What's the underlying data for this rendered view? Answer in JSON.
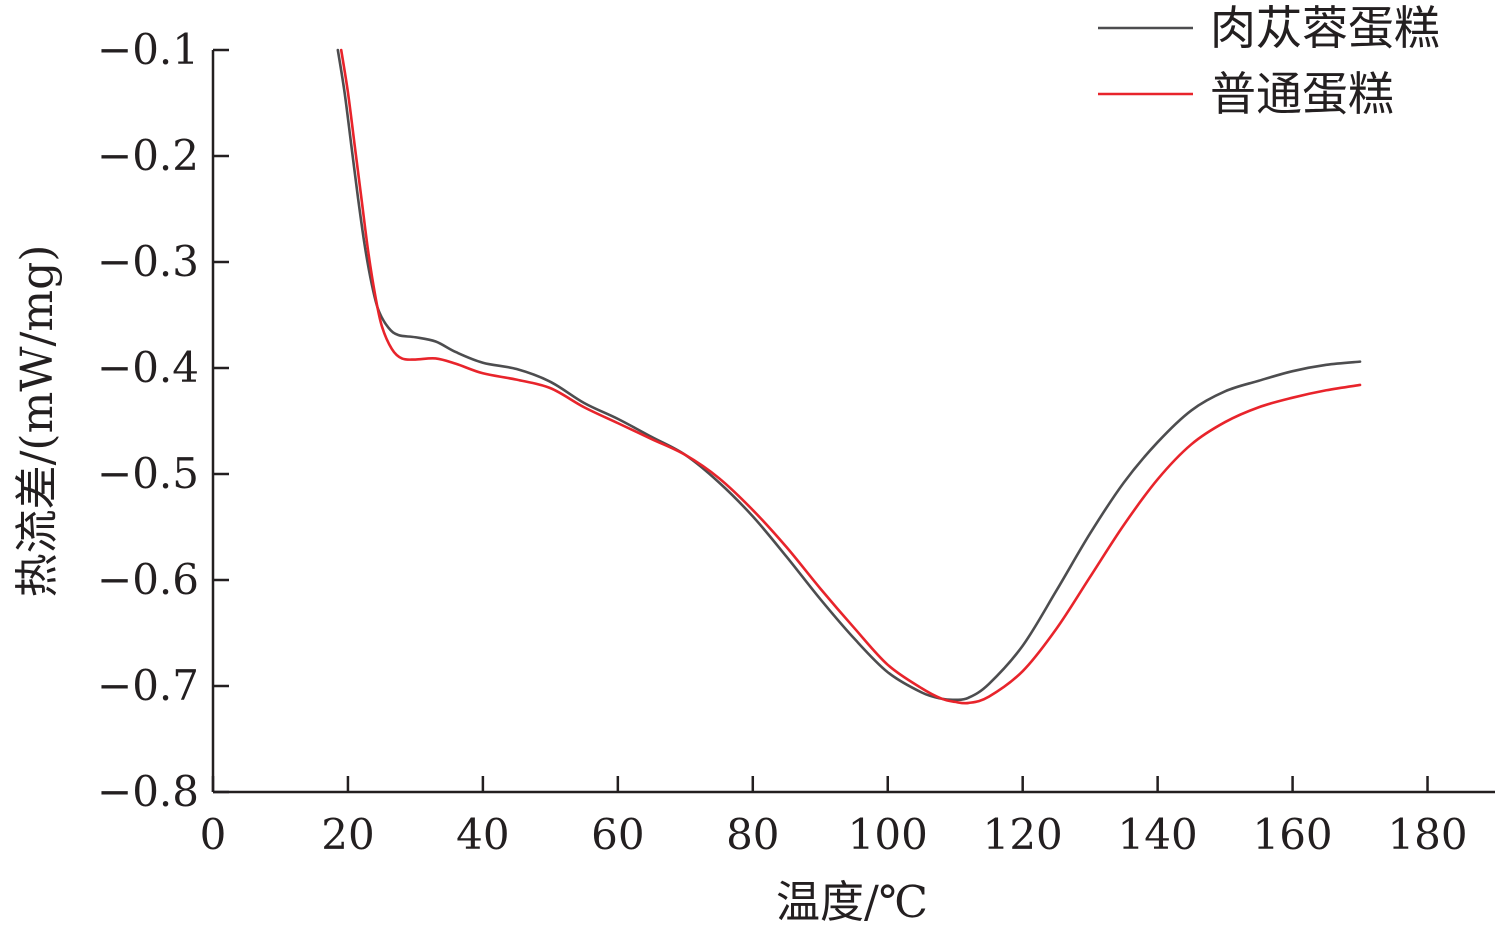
{
  "chart_data": {
    "type": "line",
    "title": "",
    "xlabel": "温度/℃",
    "ylabel": "热流差/(mW/mg)",
    "xlim": [
      0,
      190
    ],
    "ylim": [
      -0.8,
      -0.1
    ],
    "x_ticks": [
      0,
      20,
      40,
      60,
      80,
      100,
      120,
      140,
      160,
      180
    ],
    "x_tick_labels": [
      "0",
      "20",
      "40",
      "60",
      "80",
      "100",
      "120",
      "140",
      "160",
      "180"
    ],
    "y_ticks": [
      -0.1,
      -0.2,
      -0.3,
      -0.4,
      -0.5,
      -0.6,
      -0.7,
      -0.8
    ],
    "y_tick_labels": [
      "−0.1",
      "−0.2",
      "−0.3",
      "−0.4",
      "−0.5",
      "−0.6",
      "−0.7",
      "−0.8"
    ],
    "grid": false,
    "legend_position": "top-right",
    "series": [
      {
        "name": "肉苁蓉蛋糕",
        "color": "#4d4d4f",
        "points": [
          [
            18.5,
            -0.1
          ],
          [
            19.5,
            -0.14
          ],
          [
            20.5,
            -0.19
          ],
          [
            21.5,
            -0.24
          ],
          [
            22.5,
            -0.285
          ],
          [
            23.5,
            -0.32
          ],
          [
            24.5,
            -0.345
          ],
          [
            26,
            -0.362
          ],
          [
            27.5,
            -0.369
          ],
          [
            30,
            -0.371
          ],
          [
            33,
            -0.375
          ],
          [
            36,
            -0.385
          ],
          [
            40,
            -0.395
          ],
          [
            45,
            -0.401
          ],
          [
            50,
            -0.413
          ],
          [
            55,
            -0.433
          ],
          [
            60,
            -0.448
          ],
          [
            65,
            -0.465
          ],
          [
            70,
            -0.482
          ],
          [
            75,
            -0.508
          ],
          [
            80,
            -0.54
          ],
          [
            85,
            -0.578
          ],
          [
            90,
            -0.618
          ],
          [
            95,
            -0.655
          ],
          [
            100,
            -0.687
          ],
          [
            105,
            -0.706
          ],
          [
            108,
            -0.712
          ],
          [
            110,
            -0.713
          ],
          [
            112,
            -0.711
          ],
          [
            115,
            -0.698
          ],
          [
            120,
            -0.662
          ],
          [
            125,
            -0.61
          ],
          [
            130,
            -0.556
          ],
          [
            135,
            -0.508
          ],
          [
            140,
            -0.47
          ],
          [
            145,
            -0.44
          ],
          [
            150,
            -0.422
          ],
          [
            155,
            -0.412
          ],
          [
            160,
            -0.403
          ],
          [
            165,
            -0.397
          ],
          [
            170,
            -0.394
          ]
        ]
      },
      {
        "name": "普通蛋糕",
        "color": "#e8242b",
        "points": [
          [
            19,
            -0.1
          ],
          [
            20,
            -0.14
          ],
          [
            21,
            -0.19
          ],
          [
            22,
            -0.24
          ],
          [
            23,
            -0.29
          ],
          [
            24,
            -0.33
          ],
          [
            25,
            -0.36
          ],
          [
            26.5,
            -0.382
          ],
          [
            28,
            -0.391
          ],
          [
            30,
            -0.392
          ],
          [
            33,
            -0.391
          ],
          [
            36,
            -0.396
          ],
          [
            40,
            -0.405
          ],
          [
            45,
            -0.411
          ],
          [
            50,
            -0.419
          ],
          [
            55,
            -0.437
          ],
          [
            60,
            -0.452
          ],
          [
            65,
            -0.467
          ],
          [
            70,
            -0.482
          ],
          [
            75,
            -0.504
          ],
          [
            80,
            -0.534
          ],
          [
            85,
            -0.569
          ],
          [
            90,
            -0.608
          ],
          [
            95,
            -0.645
          ],
          [
            100,
            -0.68
          ],
          [
            105,
            -0.702
          ],
          [
            108,
            -0.712
          ],
          [
            110,
            -0.715
          ],
          [
            112,
            -0.716
          ],
          [
            115,
            -0.71
          ],
          [
            120,
            -0.686
          ],
          [
            125,
            -0.646
          ],
          [
            130,
            -0.597
          ],
          [
            135,
            -0.548
          ],
          [
            140,
            -0.505
          ],
          [
            145,
            -0.472
          ],
          [
            150,
            -0.451
          ],
          [
            155,
            -0.437
          ],
          [
            160,
            -0.428
          ],
          [
            165,
            -0.421
          ],
          [
            170,
            -0.416
          ]
        ]
      }
    ]
  }
}
